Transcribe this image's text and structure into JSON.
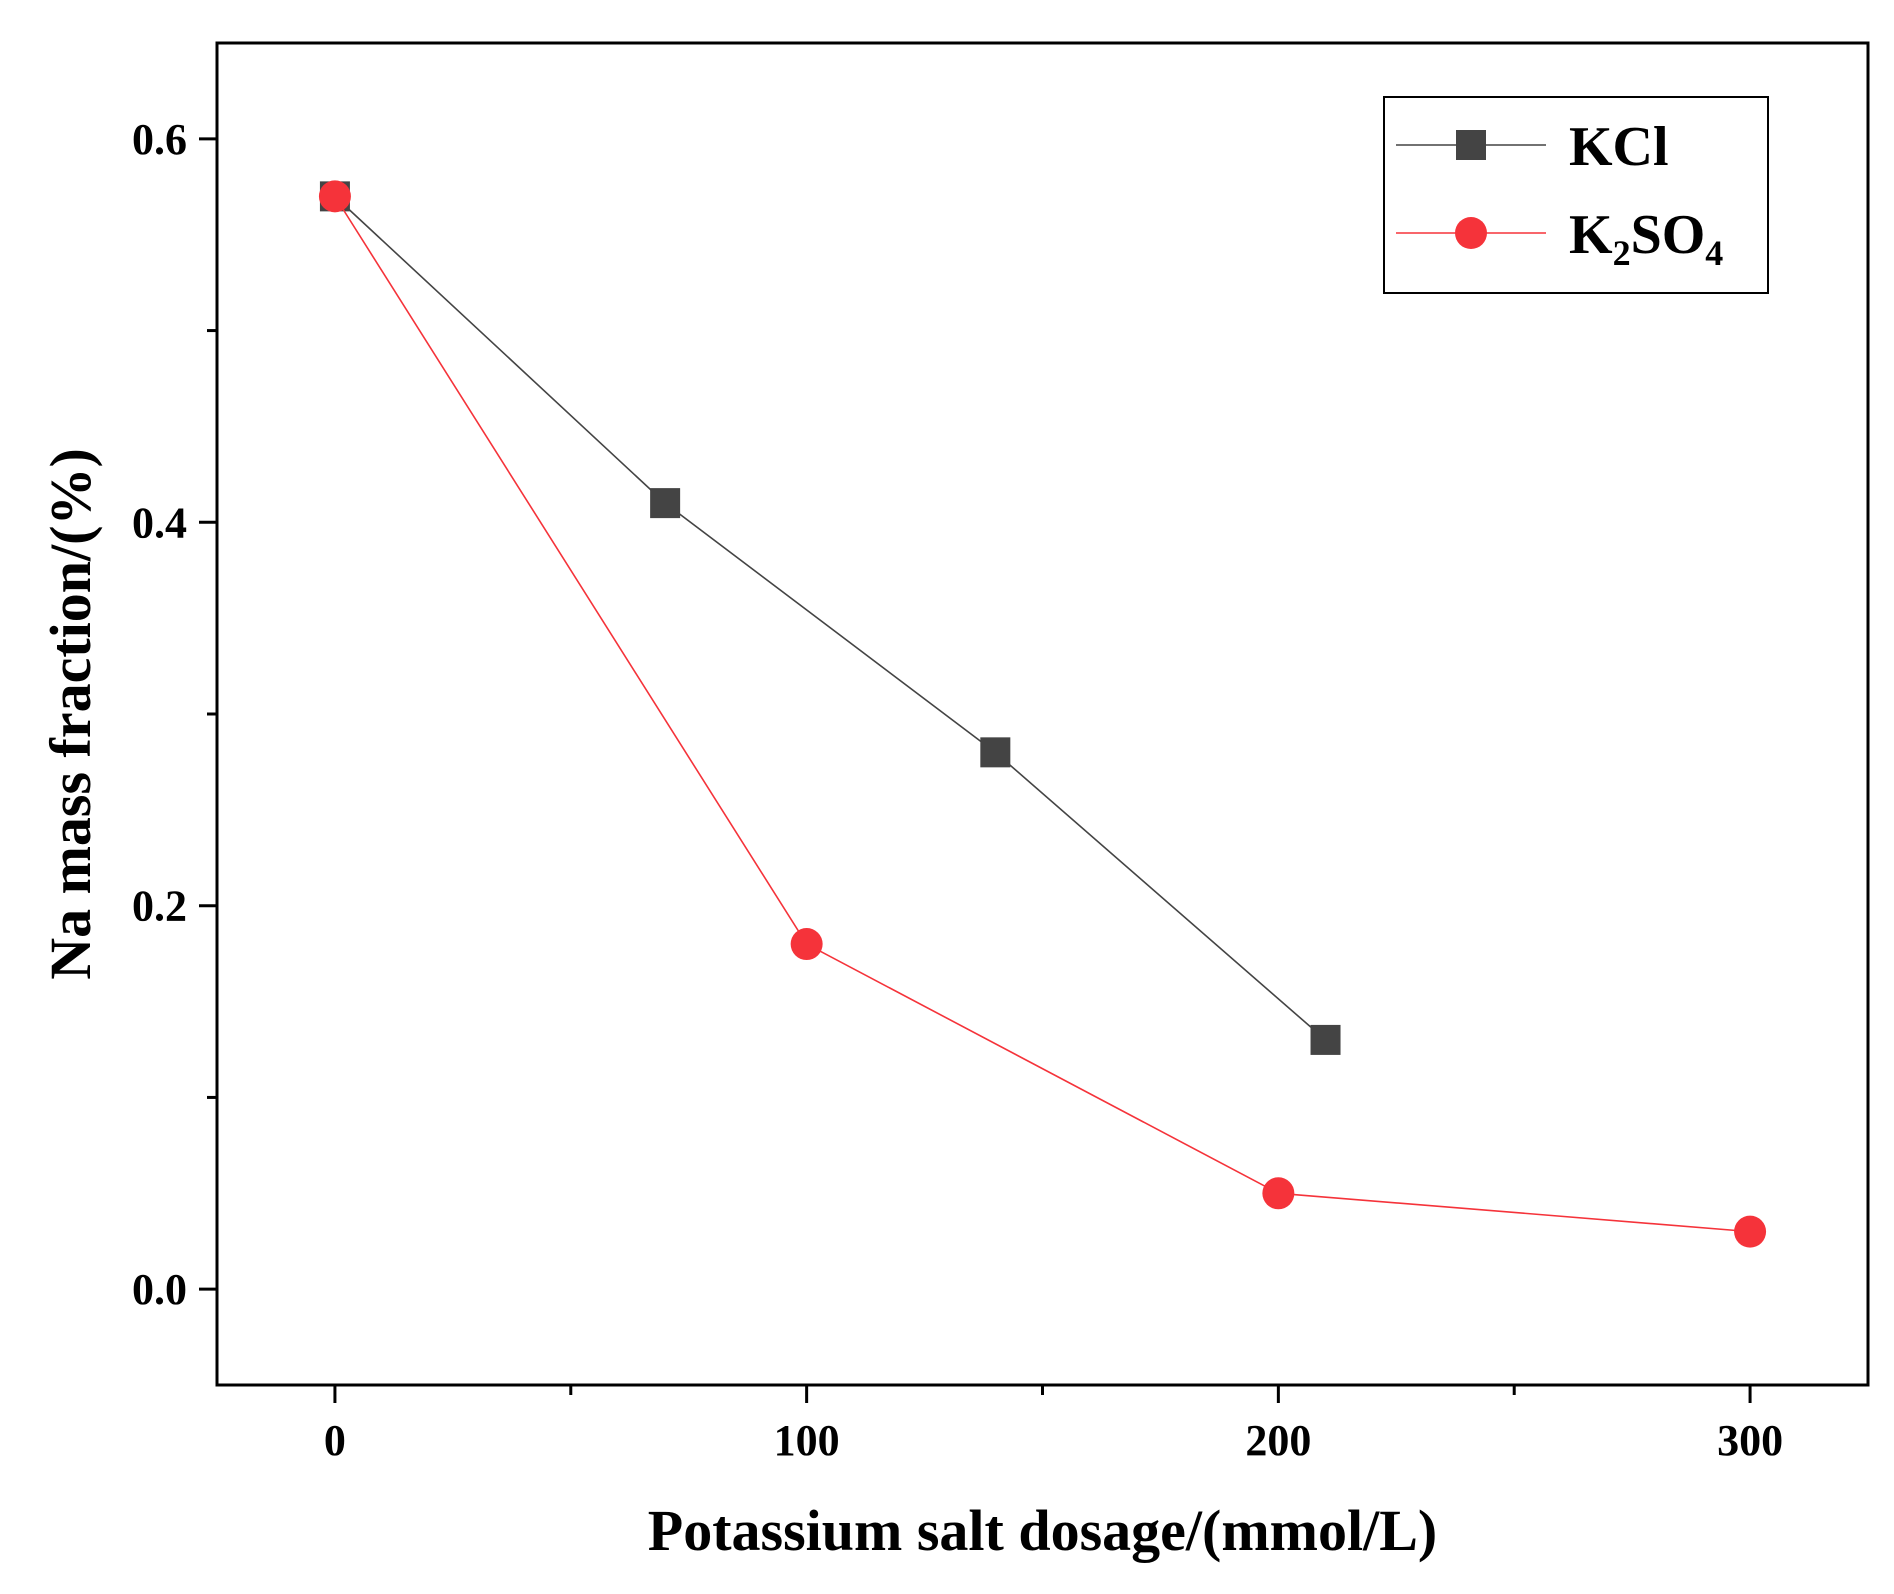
{
  "chart_data": {
    "type": "line",
    "title": "",
    "xlabel": "Potassium salt dosage/(mmol/L)",
    "ylabel": "Na mass fraction/(%)",
    "xlim": [
      -25,
      325
    ],
    "ylim": [
      -0.05,
      0.65
    ],
    "xticks": [
      0,
      100,
      200,
      300
    ],
    "xtick_labels": [
      "0",
      "100",
      "200",
      "300"
    ],
    "x_minor_ticks": [
      50,
      150,
      250
    ],
    "yticks": [
      0.0,
      0.2,
      0.4,
      0.6
    ],
    "ytick_labels": [
      "0.0",
      "0.2",
      "0.4",
      "0.6"
    ],
    "y_minor_ticks": [
      0.1,
      0.3,
      0.5
    ],
    "grid": false,
    "legend_position": "top-right",
    "series": [
      {
        "name": "KCl",
        "legend_main": "KCl",
        "legend_sub1": "",
        "legend_mid": "",
        "legend_sub2": "",
        "marker": "square",
        "color": "#444444",
        "x": [
          0,
          70,
          140,
          210
        ],
        "y": [
          0.57,
          0.41,
          0.28,
          0.13
        ]
      },
      {
        "name": "K2SO4",
        "legend_main": "K",
        "legend_sub1": "2",
        "legend_mid": "SO",
        "legend_sub2": "4",
        "marker": "circle",
        "color": "#f5333a",
        "x": [
          0,
          100,
          200,
          300
        ],
        "y": [
          0.57,
          0.18,
          0.05,
          0.03
        ]
      }
    ]
  }
}
